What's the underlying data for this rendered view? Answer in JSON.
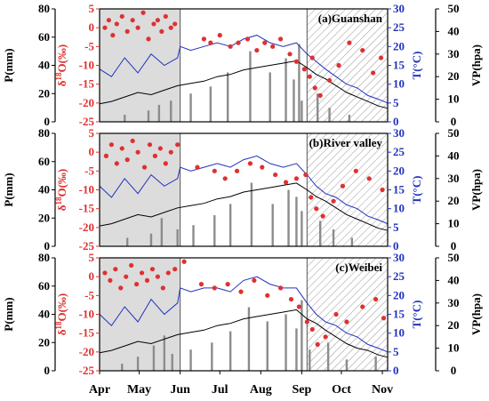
{
  "figure": {
    "axis_labels": {
      "precip": "P(mm)",
      "isotope_symbol": "δ",
      "isotope_sup": "18",
      "isotope_rest": "O(‰)",
      "temp": "T(°C)",
      "vp": "VP(hpa)"
    },
    "month_labels": [
      "Apr",
      "May",
      "Jun",
      "Jul",
      "Aug",
      "Sep",
      "Oct",
      "Nov"
    ],
    "colors": {
      "isotope": "#e03030",
      "temperature": "#2233bb",
      "vapor_pressure": "#000000",
      "precip_bar": "#8c8c8c",
      "shade": "#dcdcdc",
      "hatch": "#9a9a9a"
    }
  },
  "chart_data": [
    {
      "type": "line",
      "title": "(a)Guanshan",
      "x_unit": "day of year",
      "x_range": [
        "Apr 1",
        "Nov 5"
      ],
      "shaded_period": [
        "Apr 1",
        "Jun 1"
      ],
      "hatched_period": [
        "Sep 5",
        "Nov 5"
      ],
      "axes": {
        "precip": {
          "label": "P(mm)",
          "ylim": [
            0,
            80
          ],
          "ticks": [
            0,
            20,
            40,
            60,
            80
          ]
        },
        "isotope": {
          "label": "δ18O(‰)",
          "ylim": [
            -25,
            5
          ],
          "ticks": [
            -25,
            -20,
            -15,
            -10,
            -5,
            0,
            5
          ]
        },
        "temperature": {
          "label": "T(°C)",
          "ylim": [
            0,
            30
          ],
          "ticks": [
            0,
            5,
            10,
            15,
            20,
            25,
            30
          ]
        },
        "vapor_pressure": {
          "label": "VP(hpa)",
          "ylim": [
            0,
            50
          ],
          "ticks": [
            0,
            10,
            20,
            30,
            40,
            50
          ]
        }
      },
      "series": [
        {
          "name": "δ18O",
          "kind": "scatter",
          "color": "#e03030",
          "x": [
            95,
            98,
            101,
            104,
            108,
            112,
            116,
            120,
            124,
            128,
            132,
            135,
            138,
            141,
            145,
            148,
            170,
            175,
            182,
            190,
            196,
            203,
            210,
            216,
            222,
            228,
            235,
            240,
            246,
            250,
            252,
            254,
            258,
            265,
            272,
            280,
            290,
            298,
            304
          ],
          "y": [
            0,
            2,
            -2,
            1,
            3,
            -1,
            2,
            0,
            4,
            -3,
            1,
            2,
            -1,
            3,
            0,
            1,
            -3,
            -4,
            -2,
            -5,
            -4,
            -3,
            -6,
            -4,
            -5,
            -3,
            -7,
            -9,
            -11,
            -13,
            -8,
            -16,
            -18,
            -14,
            -10,
            -4,
            -6,
            -12,
            -8
          ]
        },
        {
          "name": "T",
          "kind": "line",
          "color": "#2233bb",
          "x": [
            91,
            100,
            110,
            120,
            130,
            140,
            150,
            152,
            160,
            170,
            180,
            190,
            200,
            210,
            220,
            230,
            240,
            248,
            255,
            262,
            270,
            278,
            286,
            294,
            302,
            309
          ],
          "y": [
            14,
            12,
            17,
            13,
            18,
            15,
            17,
            20,
            19,
            20,
            21,
            20,
            22,
            23,
            21,
            20,
            21,
            18,
            16,
            14,
            12,
            10,
            9,
            7,
            6,
            5
          ]
        },
        {
          "name": "VP",
          "kind": "line",
          "color": "#000000",
          "x": [
            91,
            100,
            110,
            120,
            130,
            140,
            150,
            160,
            170,
            180,
            190,
            200,
            210,
            220,
            230,
            240,
            248,
            255,
            262,
            270,
            278,
            286,
            294,
            302,
            309
          ],
          "y": [
            8,
            9,
            11,
            13,
            12,
            14,
            16,
            17,
            18,
            20,
            21,
            23,
            24,
            25,
            26,
            27,
            24,
            21,
            19,
            16,
            13,
            11,
            9,
            7,
            6
          ]
        },
        {
          "name": "P",
          "kind": "bar",
          "color": "#8c8c8c",
          "x": [
            110,
            128,
            136,
            145,
            160,
            175,
            188,
            205,
            220,
            232,
            238,
            242,
            244,
            256,
            265,
            280
          ],
          "y": [
            5,
            8,
            12,
            15,
            20,
            25,
            35,
            50,
            35,
            45,
            30,
            55,
            15,
            20,
            10,
            5
          ]
        }
      ]
    },
    {
      "type": "line",
      "title": "(b)River valley",
      "x_unit": "day of year",
      "x_range": [
        "Apr 1",
        "Nov 5"
      ],
      "shaded_period": [
        "Apr 1",
        "Jun 1"
      ],
      "hatched_period": [
        "Sep 5",
        "Nov 5"
      ],
      "axes": {
        "precip": {
          "label": "P(mm)",
          "ylim": [
            0,
            80
          ],
          "ticks": [
            0,
            20,
            40,
            60,
            80
          ]
        },
        "isotope": {
          "label": "δ18O(‰)",
          "ylim": [
            -25,
            5
          ],
          "ticks": [
            -25,
            -20,
            -15,
            -10,
            -5,
            0,
            5
          ]
        },
        "temperature": {
          "label": "T(°C)",
          "ylim": [
            0,
            30
          ],
          "ticks": [
            0,
            5,
            10,
            15,
            20,
            25,
            30
          ]
        },
        "vapor_pressure": {
          "label": "VP(hpa)",
          "ylim": [
            0,
            50
          ],
          "ticks": [
            0,
            10,
            20,
            30,
            40,
            50
          ]
        }
      },
      "series": [
        {
          "name": "δ18O",
          "kind": "scatter",
          "color": "#e03030",
          "x": [
            96,
            100,
            104,
            108,
            112,
            116,
            120,
            125,
            129,
            133,
            137,
            141,
            145,
            150,
            165,
            178,
            186,
            195,
            205,
            214,
            224,
            232,
            240,
            247,
            251,
            255,
            260,
            268,
            275,
            285,
            295,
            305
          ],
          "y": [
            -1,
            2,
            -3,
            1,
            -2,
            3,
            0,
            -4,
            2,
            -1,
            1,
            -3,
            0,
            2,
            -4,
            -5,
            -7,
            -5,
            -3,
            -4,
            -6,
            -8,
            -7,
            -6,
            -12,
            -15,
            -17,
            -13,
            -9,
            -5,
            -7,
            -10
          ]
        },
        {
          "name": "T",
          "kind": "line",
          "color": "#2233bb",
          "x": [
            91,
            100,
            110,
            120,
            130,
            140,
            150,
            152,
            160,
            170,
            180,
            190,
            200,
            210,
            220,
            230,
            240,
            248,
            255,
            262,
            270,
            278,
            286,
            294,
            302,
            309
          ],
          "y": [
            16,
            13,
            18,
            14,
            19,
            16,
            18,
            21,
            20,
            21,
            22,
            21,
            23,
            24,
            22,
            21,
            22,
            19,
            16,
            14,
            13,
            11,
            10,
            8,
            7,
            6
          ]
        },
        {
          "name": "VP",
          "kind": "line",
          "color": "#000000",
          "x": [
            91,
            100,
            110,
            120,
            130,
            140,
            150,
            160,
            170,
            180,
            190,
            200,
            210,
            220,
            230,
            240,
            248,
            255,
            262,
            270,
            278,
            286,
            294,
            302,
            309
          ],
          "y": [
            9,
            10,
            12,
            14,
            13,
            15,
            17,
            18,
            19,
            21,
            22,
            24,
            25,
            26,
            27,
            28,
            25,
            22,
            20,
            17,
            14,
            12,
            10,
            8,
            7
          ]
        },
        {
          "name": "P",
          "kind": "bar",
          "color": "#8c8c8c",
          "x": [
            112,
            130,
            138,
            150,
            162,
            178,
            190,
            206,
            222,
            234,
            240,
            244,
            258,
            268,
            282
          ],
          "y": [
            6,
            9,
            20,
            12,
            15,
            22,
            30,
            45,
            30,
            40,
            35,
            25,
            18,
            12,
            6
          ]
        }
      ]
    },
    {
      "type": "line",
      "title": "(c)Weibei",
      "x_unit": "day of year",
      "x_range": [
        "Apr 1",
        "Nov 5"
      ],
      "shaded_period": [
        "Apr 1",
        "Jun 1"
      ],
      "hatched_period": [
        "Sep 5",
        "Nov 5"
      ],
      "axes": {
        "precip": {
          "label": "P(mm)",
          "ylim": [
            0,
            80
          ],
          "ticks": [
            0,
            20,
            40,
            60,
            80
          ]
        },
        "isotope": {
          "label": "δ18O(‰)",
          "ylim": [
            -25,
            5
          ],
          "ticks": [
            -25,
            -20,
            -15,
            -10,
            -5,
            0,
            5
          ]
        },
        "temperature": {
          "label": "T(°C)",
          "ylim": [
            0,
            30
          ],
          "ticks": [
            0,
            5,
            10,
            15,
            20,
            25,
            30
          ]
        },
        "vapor_pressure": {
          "label": "VP(hpa)",
          "ylim": [
            0,
            50
          ],
          "ticks": [
            0,
            10,
            20,
            30,
            40,
            50
          ]
        }
      },
      "series": [
        {
          "name": "δ18O",
          "kind": "scatter",
          "color": "#e03030",
          "x": [
            95,
            99,
            103,
            107,
            111,
            115,
            119,
            123,
            127,
            131,
            135,
            139,
            143,
            148,
            155,
            168,
            178,
            188,
            198,
            208,
            218,
            228,
            236,
            242,
            248,
            252,
            256,
            262,
            270,
            278,
            290,
            300,
            306
          ],
          "y": [
            1,
            -1,
            2,
            -3,
            0,
            3,
            -2,
            1,
            -1,
            2,
            0,
            -3,
            1,
            2,
            4,
            -2,
            -3,
            -2,
            -4,
            -1,
            -5,
            -3,
            -6,
            -8,
            -12,
            -14,
            -18,
            -16,
            -10,
            -12,
            -8,
            -6,
            -11
          ]
        },
        {
          "name": "T",
          "kind": "line",
          "color": "#2233bb",
          "x": [
            91,
            100,
            110,
            120,
            130,
            140,
            150,
            152,
            160,
            170,
            180,
            190,
            200,
            210,
            220,
            230,
            240,
            248,
            255,
            262,
            270,
            278,
            286,
            294,
            302,
            309
          ],
          "y": [
            15,
            12,
            17,
            13,
            19,
            15,
            18,
            22,
            21,
            22,
            22,
            21,
            24,
            25,
            23,
            22,
            22,
            18,
            15,
            13,
            12,
            10,
            9,
            7,
            6,
            5
          ]
        },
        {
          "name": "VP",
          "kind": "line",
          "color": "#000000",
          "x": [
            91,
            100,
            110,
            120,
            130,
            140,
            150,
            160,
            170,
            180,
            190,
            200,
            210,
            220,
            230,
            240,
            248,
            255,
            262,
            270,
            278,
            286,
            294,
            302,
            309
          ],
          "y": [
            8,
            9,
            11,
            13,
            12,
            14,
            16,
            17,
            18,
            20,
            21,
            23,
            24,
            25,
            26,
            27,
            23,
            21,
            18,
            15,
            12,
            10,
            9,
            7,
            6
          ]
        },
        {
          "name": "P",
          "kind": "bar",
          "color": "#8c8c8c",
          "x": [
            108,
            120,
            132,
            140,
            146,
            160,
            176,
            190,
            204,
            218,
            232,
            240,
            244,
            250,
            264,
            278,
            300
          ],
          "y": [
            5,
            10,
            18,
            25,
            12,
            15,
            20,
            28,
            45,
            35,
            40,
            30,
            50,
            15,
            20,
            8,
            10
          ]
        }
      ]
    }
  ]
}
